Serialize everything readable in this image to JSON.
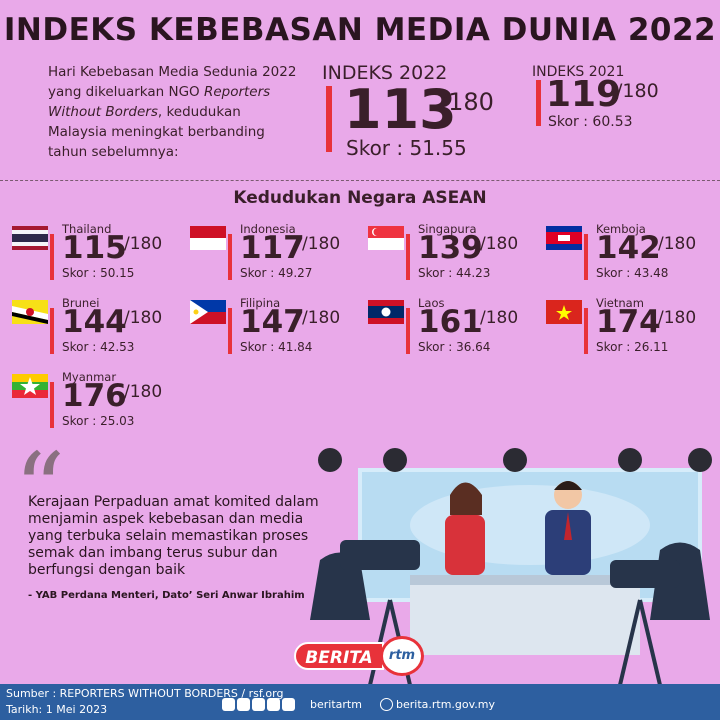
{
  "title": "INDEKS KEBEBASAN MEDIA DUNIA 2022",
  "intro": {
    "line1": "Hari Kebebasan Media Sedunia 2022 yang dikeluarkan NGO ",
    "org": "Reporters Without Borders",
    "line2": ", kedudukan Malaysia meningkat berbanding tahun sebelumnya:"
  },
  "index_2022": {
    "label": "INDEKS 2022",
    "rank": "113",
    "total": "/180",
    "score": "Skor : 51.55"
  },
  "index_2021": {
    "label": "INDEKS 2021",
    "rank": "119",
    "total": "/180",
    "score": "Skor : 60.53"
  },
  "asean_title": "Kedudukan Negara ASEAN",
  "countries": [
    {
      "name": "Thailand",
      "rank": "115",
      "total": "/180",
      "score": "Skor : 50.15",
      "flag": "thailand"
    },
    {
      "name": "Indonesia",
      "rank": "117",
      "total": "/180",
      "score": "Skor : 49.27",
      "flag": "indonesia"
    },
    {
      "name": "Singapura",
      "rank": "139",
      "total": "/180",
      "score": "Skor : 44.23",
      "flag": "singapore"
    },
    {
      "name": "Kemboja",
      "rank": "142",
      "total": "/180",
      "score": "Skor : 43.48",
      "flag": "cambodia"
    },
    {
      "name": "Brunei",
      "rank": "144",
      "total": "/180",
      "score": "Skor : 42.53",
      "flag": "brunei"
    },
    {
      "name": "Filipina",
      "rank": "147",
      "total": "/180",
      "score": "Skor : 41.84",
      "flag": "philippines"
    },
    {
      "name": "Laos",
      "rank": "161",
      "total": "/180",
      "score": "Skor : 36.64",
      "flag": "laos"
    },
    {
      "name": "Vietnam",
      "rank": "174",
      "total": "/180",
      "score": "Skor : 26.11",
      "flag": "vietnam"
    },
    {
      "name": "Myanmar",
      "rank": "176",
      "total": "/180",
      "score": "Skor : 25.03",
      "flag": "myanmar"
    }
  ],
  "quote": {
    "text": "Kerajaan Perpaduan amat komited dalam menjamin aspek kebebasan dan media yang terbuka selain memastikan proses semak dan imbang terus subur dan berfungsi dengan baik",
    "author": "- YAB Perdana Menteri, Dato’ Seri Anwar Ibrahim"
  },
  "logo": {
    "berita": "BERITA",
    "rtm": "rtm"
  },
  "footer": {
    "source": "Sumber : REPORTERS WITHOUT BORDERS / rsf.org",
    "date": "Tarikh: 1 Mei 2023",
    "handle": "beritartm",
    "site": "berita.rtm.gov.my",
    "social_icons": [
      "facebook-icon",
      "instagram-icon",
      "twitter-icon",
      "tiktok-icon",
      "youtube-icon"
    ]
  },
  "colors": {
    "background": "#e9a9e9",
    "accent": "#e8323a",
    "footer": "#2d5fa0"
  }
}
